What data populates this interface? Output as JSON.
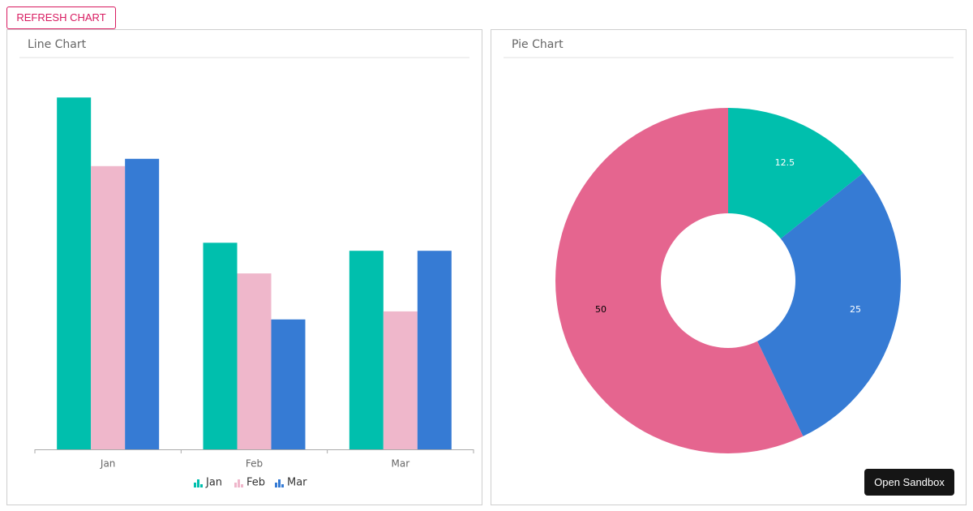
{
  "button": "REFRESH CHART",
  "sandbox_button": "Open Sandbox",
  "chart_data": [
    {
      "type": "bar",
      "title": "Line Chart",
      "categories": [
        "Jan",
        "Feb",
        "Mar"
      ],
      "series": [
        {
          "name": "Jan",
          "color": "#00bfad",
          "values": [
            48.2,
            28.3,
            27.2
          ]
        },
        {
          "name": "Feb",
          "color": "#efb7cb",
          "values": [
            38.8,
            24.1,
            18.9
          ]
        },
        {
          "name": "Mar",
          "color": "#367bd4",
          "values": [
            39.8,
            17.8,
            27.2
          ]
        }
      ],
      "ylim": [
        0,
        50
      ]
    },
    {
      "type": "pie",
      "title": "Pie Chart",
      "values": [
        12.5,
        25,
        50
      ],
      "colors": [
        "#00bfad",
        "#367bd4",
        "#e5658f"
      ]
    }
  ]
}
